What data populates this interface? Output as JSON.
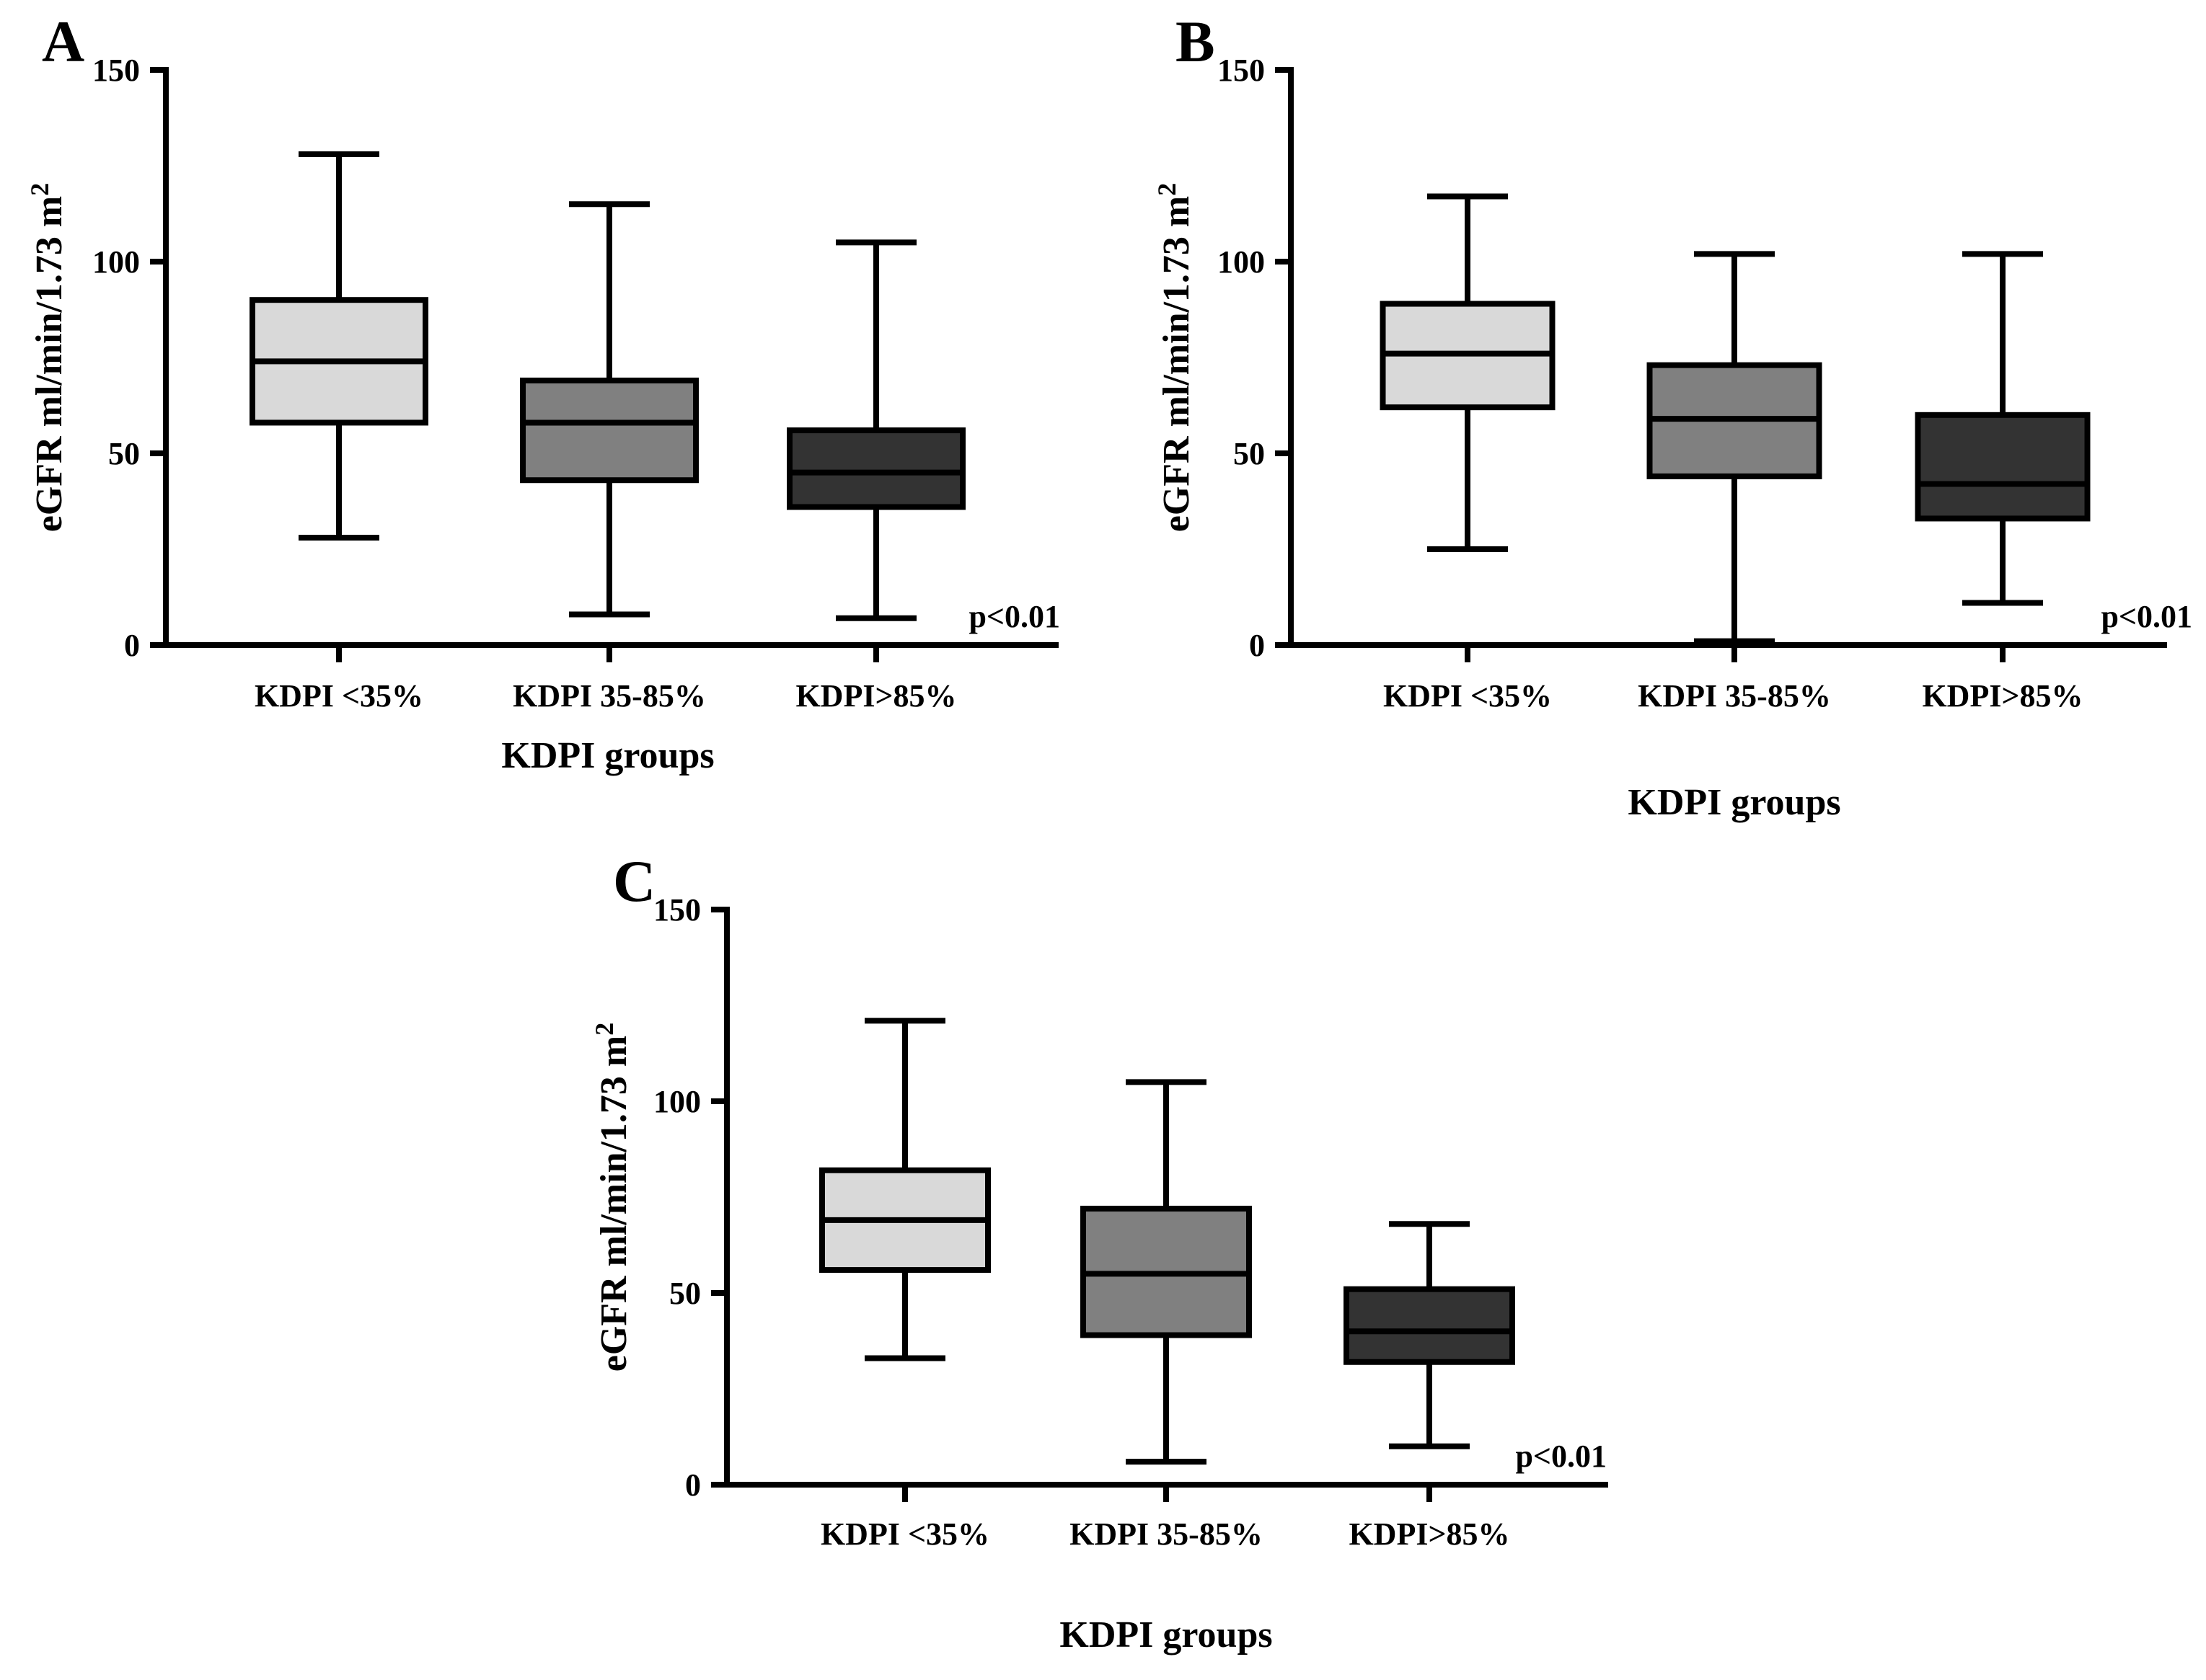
{
  "chart_data": [
    {
      "type": "boxplot",
      "panel_label": "A",
      "categories": [
        "KDPI <35%",
        "KDPI 35-85%",
        "KDPI>85%"
      ],
      "boxes": [
        {
          "min": 28,
          "q1": 58,
          "median": 74,
          "q3": 90,
          "max": 128,
          "fill": "#d9d9d9"
        },
        {
          "min": 8,
          "q1": 43,
          "median": 58,
          "q3": 69,
          "max": 115,
          "fill": "#808080"
        },
        {
          "min": 7,
          "q1": 36,
          "median": 45,
          "q3": 56,
          "max": 105,
          "fill": "#333333"
        }
      ],
      "ylabel": "eGFR ml/min/1.73 m",
      "ylabel_superscript": "2",
      "xlabel": "KDPI groups",
      "ylim": [
        0,
        150
      ],
      "yticks": [
        0,
        50,
        100,
        150
      ],
      "annotation": "p<0.01",
      "grid": false
    },
    {
      "type": "boxplot",
      "panel_label": "B",
      "categories": [
        "KDPI <35%",
        "KDPI 35-85%",
        "KDPI>85%"
      ],
      "boxes": [
        {
          "min": 25,
          "q1": 62,
          "median": 76,
          "q3": 89,
          "max": 117,
          "fill": "#d9d9d9"
        },
        {
          "min": 1,
          "q1": 44,
          "median": 59,
          "q3": 73,
          "max": 102,
          "fill": "#808080"
        },
        {
          "min": 11,
          "q1": 33,
          "median": 42,
          "q3": 60,
          "max": 102,
          "fill": "#333333"
        }
      ],
      "ylabel": "eGFR ml/min/1.73 m",
      "ylabel_superscript": "2",
      "xlabel": "KDPI groups",
      "ylim": [
        0,
        150
      ],
      "yticks": [
        0,
        50,
        100,
        150
      ],
      "annotation": "p<0.01",
      "grid": false
    },
    {
      "type": "boxplot",
      "panel_label": "C",
      "categories": [
        "KDPI <35%",
        "KDPI 35-85%",
        "KDPI>85%"
      ],
      "boxes": [
        {
          "min": 33,
          "q1": 56,
          "median": 69,
          "q3": 82,
          "max": 121,
          "fill": "#d9d9d9"
        },
        {
          "min": 6,
          "q1": 39,
          "median": 55,
          "q3": 72,
          "max": 105,
          "fill": "#808080"
        },
        {
          "min": 10,
          "q1": 32,
          "median": 40,
          "q3": 51,
          "max": 68,
          "fill": "#333333"
        }
      ],
      "ylabel": "eGFR ml/min/1.73 m",
      "ylabel_superscript": "2",
      "xlabel": "KDPI groups",
      "ylim": [
        0,
        150
      ],
      "yticks": [
        0,
        50,
        100,
        150
      ],
      "annotation": "p<0.01",
      "grid": false
    }
  ]
}
